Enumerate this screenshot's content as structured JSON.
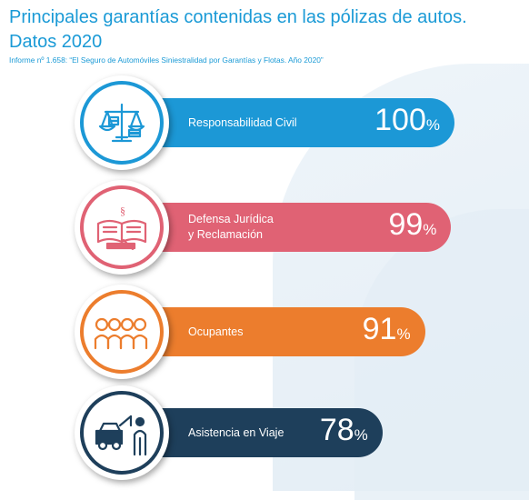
{
  "header": {
    "title_line1": "Principales garantías contenidas en las pólizas de autos.",
    "title_line2": "Datos 2020",
    "source": "Informe nº 1.658: “El Seguro de Automóviles Siniestralidad por Garantías y Flotas. Año 2020”"
  },
  "chart_data": {
    "type": "bar",
    "categories": [
      "Responsabilidad Civil",
      "Defensa Jurídica\ny Reclamación",
      "Ocupantes",
      "Asistencia en Viaje"
    ],
    "values": [
      100,
      99,
      91,
      78
    ],
    "value_labels": [
      "100",
      "99",
      "91",
      "78"
    ],
    "unit": "%",
    "colors": [
      "#1c98d6",
      "#e06274",
      "#ec7d2d",
      "#1e3f5b"
    ],
    "icons": [
      "scales-icon",
      "law-book-icon",
      "occupants-icon",
      "tow-truck-icon"
    ],
    "title": "Principales garantías contenidas en las pólizas de autos. Datos 2020",
    "xlim": [
      0,
      100
    ]
  }
}
